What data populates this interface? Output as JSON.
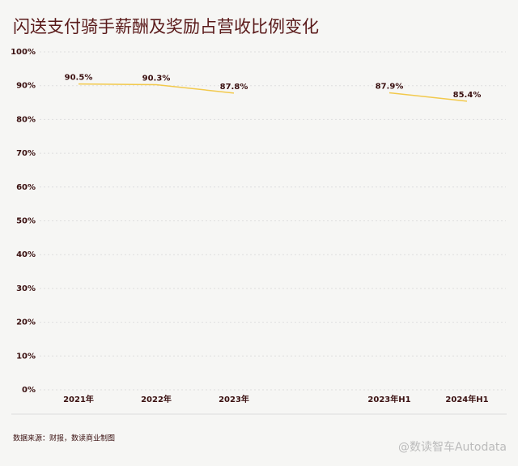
{
  "chart_data": {
    "type": "line",
    "title": "闪送支付骑手薪酬及奖励占营收比例变化",
    "categories": [
      "2021年",
      "2022年",
      "2023年",
      null,
      "2023年H1",
      "2024年H1"
    ],
    "series": [
      {
        "name": "骑手薪酬及奖励占营收比例",
        "color": "#f2c94c",
        "values": [
          90.5,
          90.3,
          87.8,
          null,
          87.9,
          85.4
        ],
        "value_labels": [
          "90.5%",
          "90.3%",
          "87.8%",
          null,
          "87.9%",
          "85.4%"
        ]
      }
    ],
    "ylim": [
      0,
      100
    ],
    "yticks": [
      {
        "value": 0,
        "label": "0%"
      },
      {
        "value": 10,
        "label": "10%"
      },
      {
        "value": 20,
        "label": "20%"
      },
      {
        "value": 30,
        "label": "30%"
      },
      {
        "value": 40,
        "label": "40%"
      },
      {
        "value": 50,
        "label": "50%"
      },
      {
        "value": 60,
        "label": "60%"
      },
      {
        "value": 70,
        "label": "70%"
      },
      {
        "value": 80,
        "label": "80%"
      },
      {
        "value": 90,
        "label": "90%"
      },
      {
        "value": 100,
        "label": "100%"
      }
    ],
    "grid": true,
    "source": "数据来源：财报，数读商业制图",
    "watermark": "@数读智车Autodata"
  }
}
